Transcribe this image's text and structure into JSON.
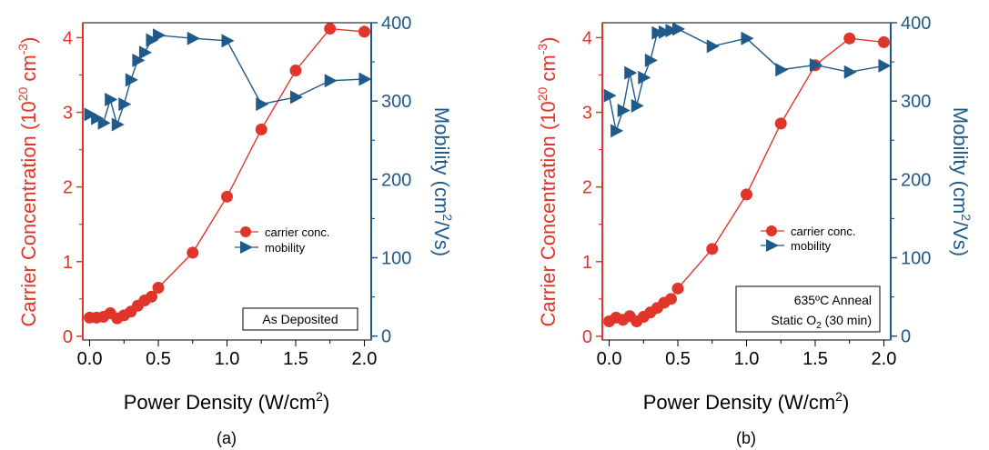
{
  "colors": {
    "carrier": "#e0352b",
    "mobility": "#1f5a8b",
    "axis": "#000000"
  },
  "shared": {
    "xlabel_main": "Power Density (W/cm",
    "xlabel_sup": "2",
    "xlabel_end": ")",
    "ylabel_left_main": "Carrier Concentration (10",
    "ylabel_left_sup1": "20",
    "ylabel_left_mid": " cm",
    "ylabel_left_sup2": "-3",
    "ylabel_left_end": ")",
    "ylabel_right_main": "Mobility (cm",
    "ylabel_right_sup": "2",
    "ylabel_right_end": "/Vs)",
    "legend_carrier": "carrier conc.",
    "legend_mobility": "mobility",
    "x_ticks": [
      "0.0",
      "0.5",
      "1.0",
      "1.5",
      "2.0"
    ],
    "yl_ticks": [
      "0",
      "1",
      "2",
      "3",
      "4"
    ],
    "yr_ticks": [
      "0",
      "100",
      "200",
      "300",
      "400"
    ]
  },
  "chart_data": [
    {
      "type": "line",
      "panel_label": "(a)",
      "annotation_lines": [
        "As Deposited"
      ],
      "xlim": [
        -0.05,
        2.05
      ],
      "ylim_left": [
        -0.05,
        4.2
      ],
      "ylim_right": [
        -5,
        400
      ],
      "series": [
        {
          "name": "carrier conc.",
          "axis": "left",
          "marker": "circle",
          "x": [
            0.0,
            0.05,
            0.1,
            0.15,
            0.2,
            0.25,
            0.3,
            0.35,
            0.4,
            0.45,
            0.5,
            0.75,
            1.0,
            1.25,
            1.5,
            1.75,
            2.0
          ],
          "y": [
            0.25,
            0.25,
            0.26,
            0.31,
            0.24,
            0.28,
            0.33,
            0.41,
            0.48,
            0.53,
            0.65,
            1.12,
            1.87,
            2.77,
            3.56,
            4.12,
            4.08
          ]
        },
        {
          "name": "mobility",
          "axis": "right",
          "marker": "triangle-right",
          "x": [
            0.0,
            0.05,
            0.1,
            0.15,
            0.2,
            0.25,
            0.3,
            0.35,
            0.4,
            0.45,
            0.5,
            0.75,
            1.0,
            1.25,
            1.5,
            1.75,
            2.0
          ],
          "y": [
            283,
            278,
            272,
            302,
            270,
            296,
            327,
            352,
            362,
            378,
            384,
            380,
            377,
            296,
            305,
            326,
            328
          ]
        }
      ]
    },
    {
      "type": "line",
      "panel_label": "(b)",
      "annotation_lines": [
        "635ºC Anneal",
        "Static O",
        "2",
        " (30 min)"
      ],
      "xlim": [
        -0.05,
        2.05
      ],
      "ylim_left": [
        -0.05,
        4.2
      ],
      "ylim_right": [
        -5,
        400
      ],
      "series": [
        {
          "name": "carrier conc.",
          "axis": "left",
          "marker": "circle",
          "x": [
            0.0,
            0.05,
            0.1,
            0.15,
            0.2,
            0.25,
            0.3,
            0.35,
            0.4,
            0.45,
            0.5,
            0.75,
            1.0,
            1.25,
            1.5,
            1.75,
            2.0
          ],
          "y": [
            0.2,
            0.25,
            0.22,
            0.27,
            0.2,
            0.26,
            0.32,
            0.38,
            0.45,
            0.5,
            0.64,
            1.17,
            1.9,
            2.85,
            3.63,
            3.99,
            3.94
          ]
        },
        {
          "name": "mobility",
          "axis": "right",
          "marker": "triangle-right",
          "x": [
            0.0,
            0.05,
            0.1,
            0.15,
            0.2,
            0.25,
            0.3,
            0.35,
            0.4,
            0.45,
            0.5,
            0.75,
            1.0,
            1.25,
            1.5,
            1.75,
            2.0
          ],
          "y": [
            307,
            262,
            288,
            336,
            294,
            330,
            352,
            387,
            388,
            390,
            392,
            370,
            380,
            340,
            346,
            337,
            345
          ]
        }
      ]
    }
  ]
}
